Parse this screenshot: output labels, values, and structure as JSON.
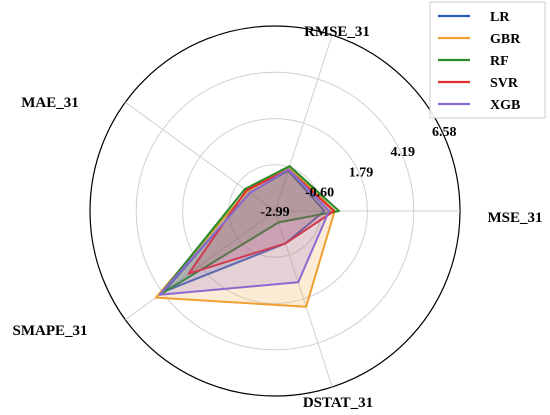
{
  "chart_data": {
    "type": "radar",
    "axes": [
      "MSE_31",
      "RMSE_31",
      "MAE_31",
      "SMAPE_31",
      "DSTAT_31"
    ],
    "ticks": [
      -2.99,
      -0.6,
      1.79,
      4.19,
      6.58
    ],
    "tick_labels": [
      "-2.99",
      "-0.60",
      "1.79",
      "4.19",
      "6.58"
    ],
    "range": [
      -2.99,
      6.58
    ],
    "grid": true,
    "legend_position": "top-right",
    "series": [
      {
        "name": "LR",
        "color": "#2c5cc5",
        "values": [
          -0.43,
          -0.8,
          -1.38,
          4.1,
          -1.23
        ]
      },
      {
        "name": "GBR",
        "color": "#f0a030",
        "values": [
          0.1,
          -0.6,
          -1.22,
          4.63,
          2.22
        ]
      },
      {
        "name": "RF",
        "color": "#2a8a2a",
        "values": [
          0.32,
          -0.55,
          -1.06,
          4.37,
          -2.37
        ]
      },
      {
        "name": "SVR",
        "color": "#e03030",
        "values": [
          0.06,
          -0.74,
          -1.16,
          2.53,
          -1.23
        ]
      },
      {
        "name": "XGB",
        "color": "#8a6ad0",
        "values": [
          -0.19,
          -0.72,
          -1.4,
          4.38,
          0.89
        ]
      }
    ]
  }
}
